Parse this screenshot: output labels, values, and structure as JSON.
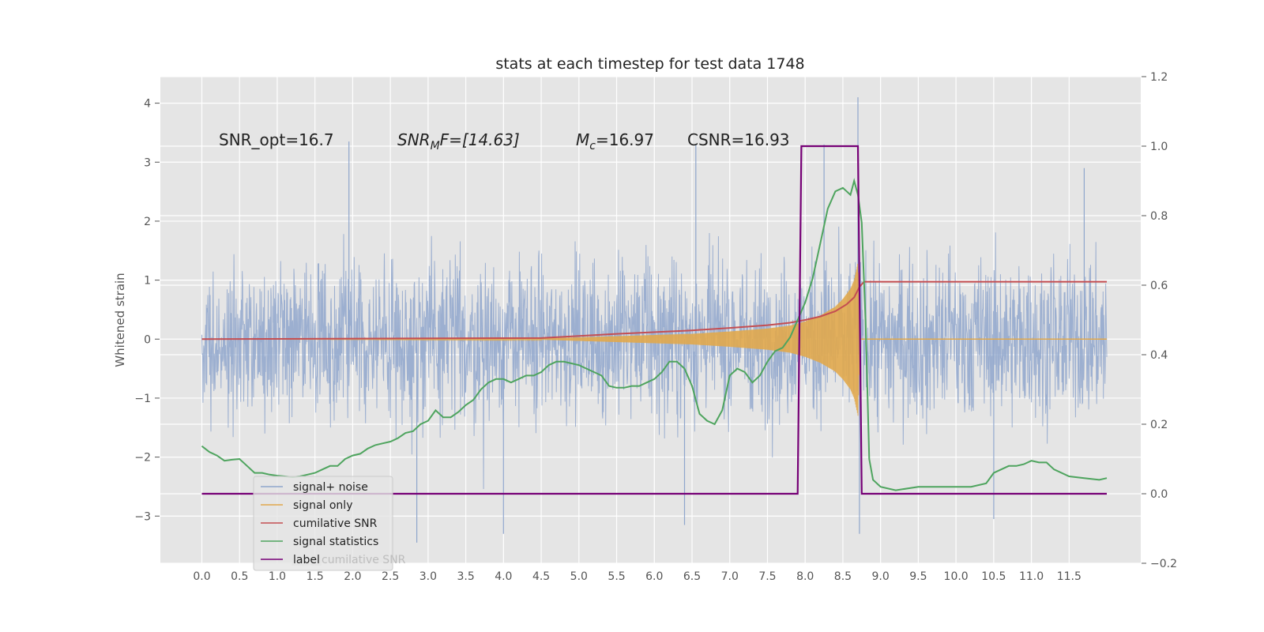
{
  "chart_data": {
    "type": "line",
    "title": "stats at each timestep for test data 1748",
    "ylabel": "Whitened strain",
    "xlabel": "",
    "xlim": [
      -0.55,
      12.45
    ],
    "ylim_left": [
      -3.8,
      4.45
    ],
    "ylim_right": [
      -0.2,
      1.2
    ],
    "x_ticks": [
      "0.0",
      "0.5",
      "1.0",
      "1.5",
      "2.0",
      "2.5",
      "3.0",
      "3.5",
      "4.0",
      "4.5",
      "5.0",
      "5.5",
      "6.0",
      "6.5",
      "7.0",
      "7.5",
      "8.0",
      "8.5",
      "9.0",
      "9.5",
      "10.0",
      "10.5",
      "11.0",
      "11.5"
    ],
    "y_ticks_left": [
      "−3",
      "−2",
      "−1",
      "0",
      "1",
      "2",
      "3",
      "4"
    ],
    "y_ticks_right": [
      "−0.2",
      "0.0",
      "0.2",
      "0.4",
      "0.6",
      "0.8",
      "1.0",
      "1.2"
    ],
    "grid": true,
    "legend_position": "lower-left",
    "colors": {
      "background": "#e5e5e5",
      "grid": "#ffffff",
      "signal_noise": "#8fa6cc",
      "signal_only": "#e1a84c",
      "cumulative_snr": "#c44e52",
      "signal_statistics": "#4ea45e",
      "label": "#760076"
    },
    "annotations": [
      {
        "text": "SNR_opt=16.7",
        "x": 0.2,
        "y": 3.3
      },
      {
        "text": "SNR_MF=[14.63]",
        "x": 2.6,
        "y": 3.3
      },
      {
        "text": "M_c=16.97",
        "x": 5.0,
        "y": 3.3
      },
      {
        "text": "CSNR=16.93",
        "x": 6.5,
        "y": 3.3
      }
    ],
    "annotation_parts": {
      "snr_opt": "SNR_opt=16.7",
      "snr_mf_base": "SNR",
      "snr_mf_sub": "M",
      "snr_mf_rest": "F=[14.63]",
      "mc_base": "M",
      "mc_sub": "c",
      "mc_rest": "=16.97",
      "csnr": "CSNR=16.93"
    },
    "series": [
      {
        "name": "signal+ noise",
        "axis": "left",
        "x_range": [
          0.0,
          12.0
        ],
        "envelope": "noise band roughly ±1.4 with spikes up to 4.1 and down to -3.4",
        "spikes": [
          [
            1.95,
            3.35
          ],
          [
            8.7,
            4.1
          ],
          [
            8.72,
            -3.3
          ],
          [
            2.85,
            -3.45
          ],
          [
            4.0,
            -3.3
          ],
          [
            6.4,
            -3.15
          ],
          [
            10.5,
            -3.05
          ],
          [
            11.7,
            2.9
          ],
          [
            8.25,
            3.3
          ],
          [
            6.55,
            3.3
          ]
        ]
      },
      {
        "name": "signal only",
        "axis": "left",
        "x": [
          0.0,
          4.5,
          5.5,
          6.5,
          7.0,
          7.5,
          7.8,
          8.0,
          8.2,
          8.4,
          8.5,
          8.6,
          8.65,
          8.7,
          8.73,
          12.0
        ],
        "amplitude": [
          0.0,
          0.01,
          0.05,
          0.09,
          0.13,
          0.18,
          0.23,
          0.3,
          0.4,
          0.55,
          0.68,
          0.85,
          1.0,
          1.3,
          0.0,
          0.0
        ]
      },
      {
        "name": "cumilative SNR",
        "axis": "right",
        "x": [
          0.0,
          4.5,
          5.5,
          6.5,
          7.0,
          7.5,
          7.8,
          8.0,
          8.2,
          8.4,
          8.55,
          8.65,
          8.72,
          8.78,
          12.0
        ],
        "y": [
          0.445,
          0.448,
          0.46,
          0.47,
          0.477,
          0.485,
          0.492,
          0.5,
          0.51,
          0.525,
          0.545,
          0.565,
          0.595,
          0.61,
          0.61
        ]
      },
      {
        "name": "signal statistics",
        "axis": "right",
        "x": [
          0.0,
          0.1,
          0.2,
          0.3,
          0.4,
          0.5,
          0.6,
          0.7,
          0.8,
          0.9,
          1.0,
          1.1,
          1.2,
          1.3,
          1.4,
          1.5,
          1.6,
          1.7,
          1.8,
          1.9,
          2.0,
          2.1,
          2.2,
          2.3,
          2.4,
          2.5,
          2.6,
          2.7,
          2.8,
          2.9,
          3.0,
          3.1,
          3.2,
          3.3,
          3.4,
          3.5,
          3.6,
          3.7,
          3.8,
          3.9,
          4.0,
          4.1,
          4.2,
          4.3,
          4.4,
          4.5,
          4.6,
          4.7,
          4.8,
          4.9,
          5.0,
          5.1,
          5.2,
          5.3,
          5.4,
          5.5,
          5.6,
          5.7,
          5.8,
          5.9,
          6.0,
          6.1,
          6.2,
          6.3,
          6.4,
          6.5,
          6.6,
          6.7,
          6.8,
          6.9,
          7.0,
          7.1,
          7.2,
          7.3,
          7.4,
          7.5,
          7.6,
          7.7,
          7.8,
          7.9,
          8.0,
          8.1,
          8.2,
          8.3,
          8.4,
          8.5,
          8.55,
          8.6,
          8.65,
          8.7,
          8.75,
          8.8,
          8.85,
          8.9,
          9.0,
          9.2,
          9.5,
          10.0,
          10.2,
          10.4,
          10.5,
          10.6,
          10.7,
          10.8,
          10.9,
          11.0,
          11.1,
          11.2,
          11.3,
          11.5,
          11.7,
          11.9,
          12.0
        ],
        "y": [
          0.137,
          0.12,
          0.11,
          0.095,
          0.098,
          0.1,
          0.08,
          0.06,
          0.06,
          0.055,
          0.052,
          0.05,
          0.048,
          0.05,
          0.055,
          0.06,
          0.07,
          0.08,
          0.08,
          0.1,
          0.11,
          0.115,
          0.13,
          0.14,
          0.145,
          0.15,
          0.16,
          0.175,
          0.18,
          0.2,
          0.21,
          0.24,
          0.22,
          0.22,
          0.235,
          0.255,
          0.27,
          0.3,
          0.32,
          0.33,
          0.33,
          0.32,
          0.33,
          0.34,
          0.34,
          0.35,
          0.37,
          0.38,
          0.38,
          0.375,
          0.37,
          0.36,
          0.35,
          0.34,
          0.31,
          0.305,
          0.305,
          0.31,
          0.31,
          0.32,
          0.33,
          0.35,
          0.38,
          0.38,
          0.36,
          0.31,
          0.23,
          0.21,
          0.2,
          0.24,
          0.34,
          0.36,
          0.35,
          0.32,
          0.34,
          0.38,
          0.41,
          0.42,
          0.45,
          0.5,
          0.55,
          0.62,
          0.72,
          0.82,
          0.87,
          0.88,
          0.87,
          0.86,
          0.9,
          0.86,
          0.78,
          0.5,
          0.1,
          0.04,
          0.02,
          0.01,
          0.02,
          0.02,
          0.02,
          0.03,
          0.06,
          0.07,
          0.08,
          0.08,
          0.085,
          0.095,
          0.09,
          0.09,
          0.07,
          0.05,
          0.045,
          0.04,
          0.045
        ]
      },
      {
        "name": "label",
        "axis": "right",
        "x": [
          0.0,
          7.9,
          7.95,
          8.7,
          8.75,
          12.0
        ],
        "y": [
          0.0,
          0.0,
          1.0,
          1.0,
          0.0,
          0.0
        ]
      }
    ],
    "legend": [
      "signal+ noise",
      "signal only",
      "cumilative SNR",
      "signal statistics",
      "label"
    ],
    "legend_ghost_text": "cumilative SNR"
  }
}
